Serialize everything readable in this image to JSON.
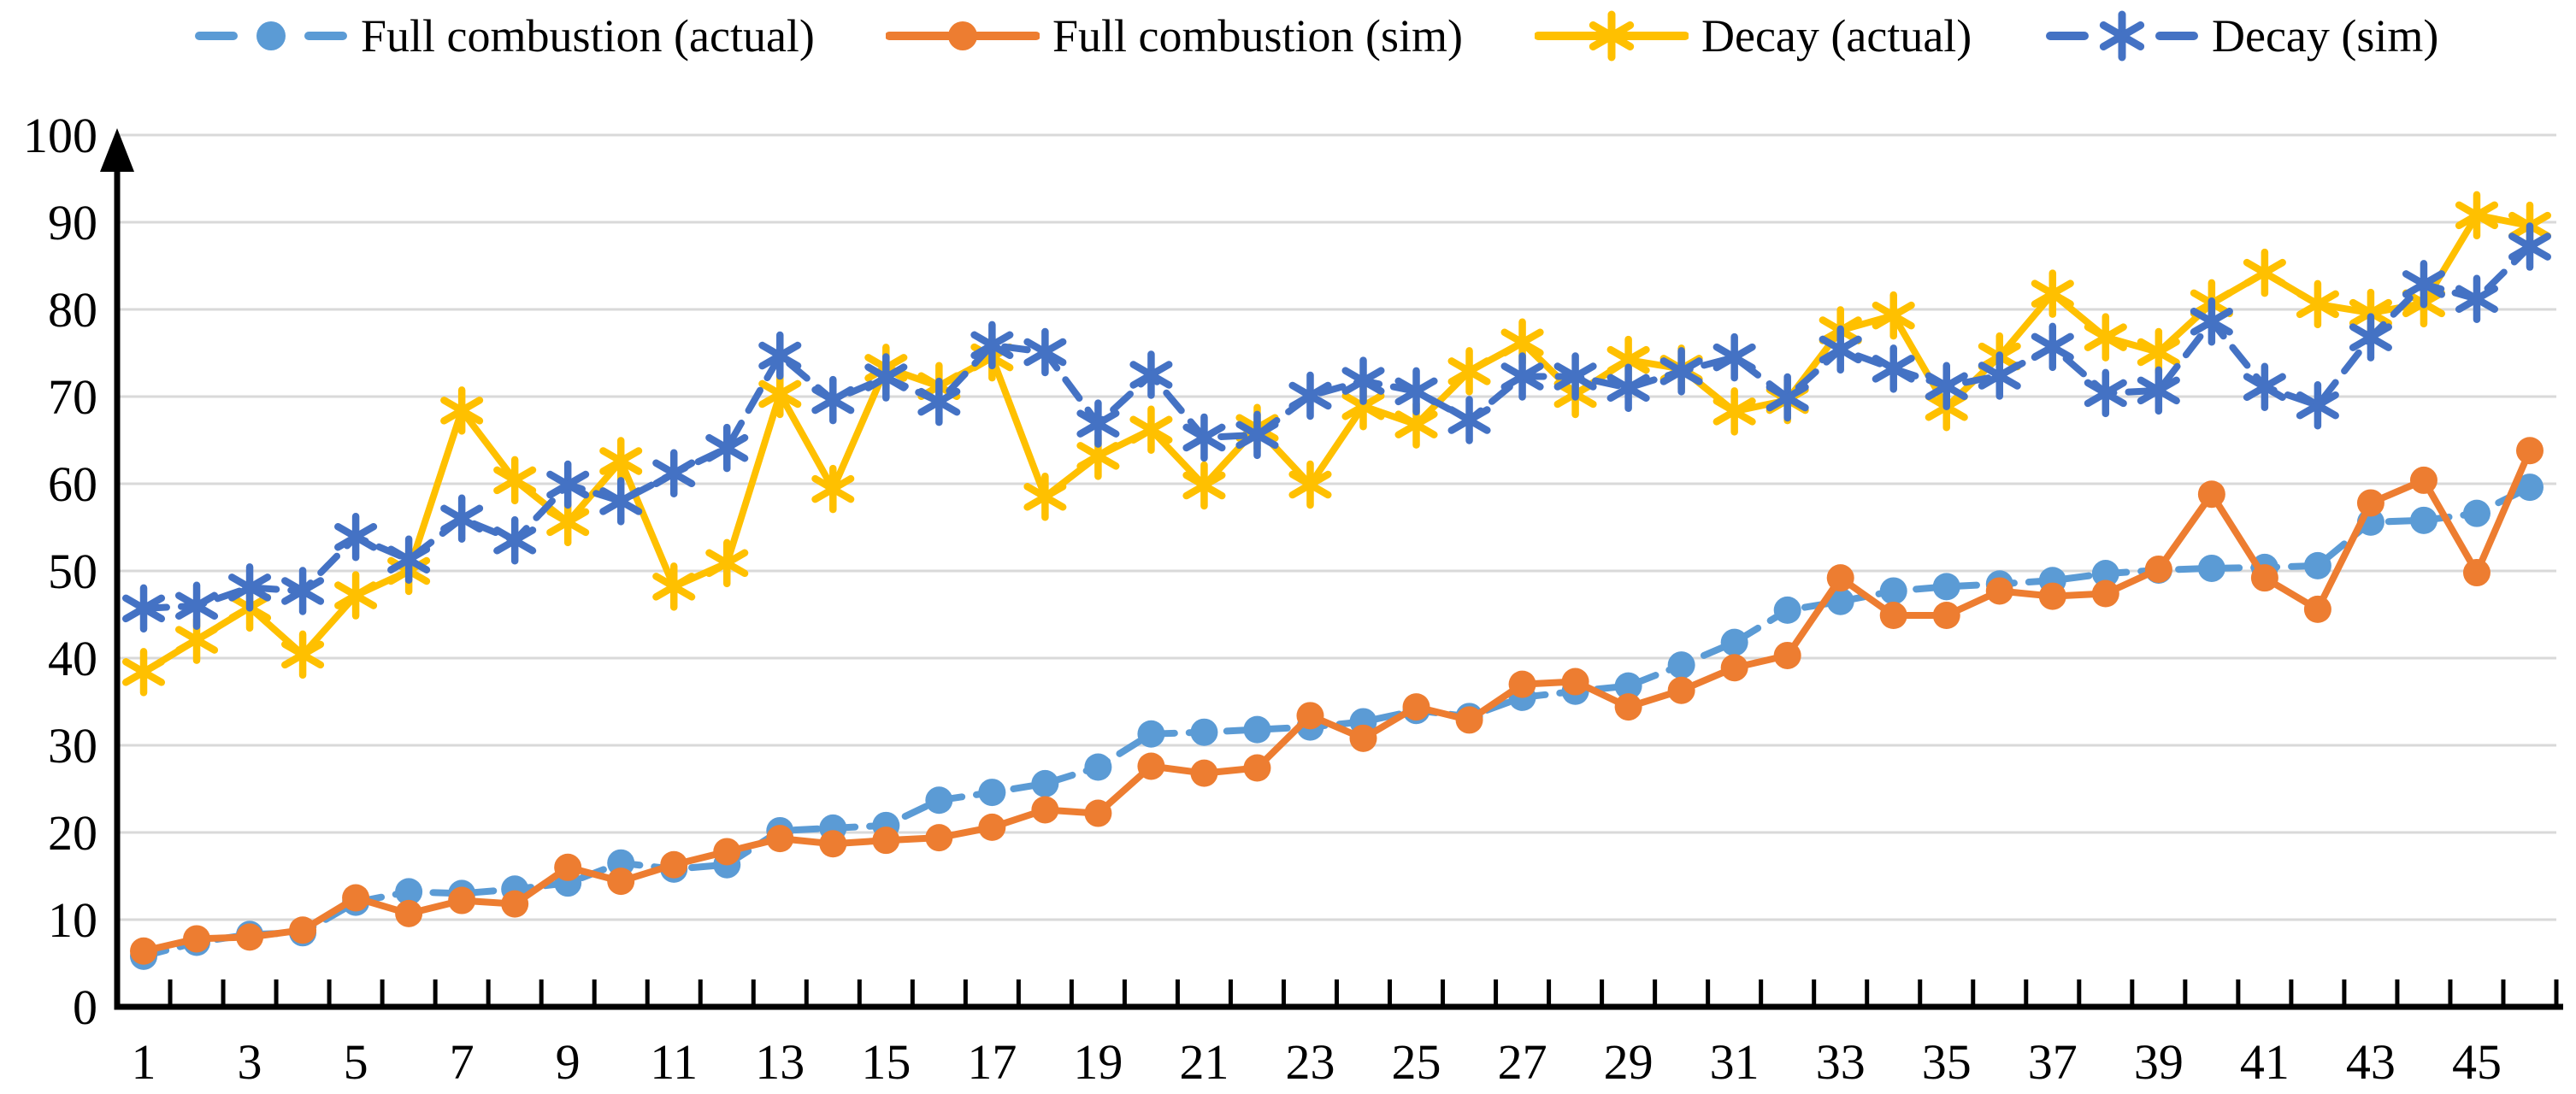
{
  "legend": {
    "items": [
      {
        "label": "Full combustion (actual)",
        "color": "#5B9BD5",
        "line": "dashed",
        "marker": "circle"
      },
      {
        "label": "Full combustion (sim)",
        "color": "#ED7D31",
        "line": "solid",
        "marker": "circle"
      },
      {
        "label": "Decay (actual)",
        "color": "#FFC000",
        "line": "solid",
        "marker": "asterisk"
      },
      {
        "label": "Decay (sim)",
        "color": "#4472C4",
        "line": "dashed",
        "marker": "asterisk"
      }
    ]
  },
  "colors": {
    "gridline": "#D9D9D9",
    "axis": "#000000",
    "background": "#FFFFFF"
  },
  "y_axis": {
    "tick_labels": [
      "0",
      "10",
      "20",
      "30",
      "40",
      "50",
      "60",
      "70",
      "80",
      "90",
      "100"
    ]
  },
  "x_axis": {
    "tick_labels": [
      "1",
      "3",
      "5",
      "7",
      "9",
      "11",
      "13",
      "15",
      "17",
      "19",
      "21",
      "23",
      "25",
      "27",
      "29",
      "31",
      "33",
      "35",
      "37",
      "39",
      "41",
      "43",
      "45"
    ]
  },
  "chart_data": {
    "type": "line",
    "title": "",
    "xlabel": "",
    "ylabel": "",
    "ylim": [
      0,
      100
    ],
    "ytick_interval": 10,
    "grid": true,
    "legend_position": "top",
    "x": [
      1,
      2,
      3,
      4,
      5,
      6,
      7,
      8,
      9,
      10,
      11,
      12,
      13,
      14,
      15,
      16,
      17,
      18,
      19,
      20,
      21,
      22,
      23,
      24,
      25,
      26,
      27,
      28,
      29,
      30,
      31,
      32,
      33,
      34,
      35,
      36,
      37,
      38,
      39,
      40,
      41,
      42,
      43,
      44,
      45,
      46
    ],
    "series": [
      {
        "name": "Full combustion (actual)",
        "color": "#5B9BD5",
        "line": "dashed",
        "marker": "circle",
        "values": [
          5.8,
          7.4,
          8.3,
          8.5,
          12.0,
          13.2,
          13.0,
          13.5,
          14.2,
          16.5,
          15.8,
          16.3,
          20.2,
          20.5,
          20.8,
          23.7,
          24.6,
          25.6,
          27.5,
          31.3,
          31.5,
          31.8,
          32.1,
          32.7,
          34.0,
          33.3,
          35.5,
          36.2,
          36.8,
          39.2,
          41.8,
          45.5,
          46.5,
          47.7,
          48.2,
          48.5,
          48.9,
          49.7,
          50.1,
          50.3,
          50.4,
          50.6,
          55.6,
          55.8,
          56.6,
          59.6
        ]
      },
      {
        "name": "Full combustion (sim)",
        "color": "#ED7D31",
        "line": "solid",
        "marker": "circle",
        "values": [
          6.4,
          7.8,
          8.0,
          8.8,
          12.5,
          10.7,
          12.2,
          11.8,
          16.0,
          14.4,
          16.3,
          17.8,
          19.3,
          18.7,
          19.1,
          19.4,
          20.6,
          22.6,
          22.2,
          27.6,
          26.8,
          27.4,
          33.4,
          30.8,
          34.4,
          32.9,
          37.0,
          37.3,
          34.4,
          36.3,
          38.9,
          40.3,
          49.2,
          44.9,
          44.9,
          47.7,
          47.1,
          47.4,
          50.2,
          58.8,
          49.2,
          45.6,
          57.8,
          60.4,
          49.8,
          63.8
        ]
      },
      {
        "name": "Decay (actual)",
        "color": "#FFC000",
        "line": "solid",
        "marker": "asterisk",
        "values": [
          38.4,
          42.1,
          45.8,
          40.4,
          47.2,
          50.0,
          68.4,
          60.4,
          55.6,
          62.6,
          48.2,
          50.9,
          70.3,
          59.4,
          73.3,
          71.2,
          74.5,
          58.5,
          63.2,
          66.2,
          59.8,
          66.4,
          59.9,
          68.9,
          66.8,
          72.9,
          76.2,
          70.3,
          74.2,
          73.2,
          68.3,
          69.6,
          77.6,
          79.3,
          68.8,
          74.6,
          81.8,
          76.8,
          75.1,
          80.7,
          84.2,
          80.6,
          79.6,
          80.7,
          90.8,
          89.6
        ]
      },
      {
        "name": "Decay (sim)",
        "color": "#4472C4",
        "line": "dashed",
        "marker": "asterisk",
        "values": [
          45.7,
          46.0,
          48.1,
          47.7,
          53.9,
          51.3,
          56.0,
          53.5,
          59.9,
          58.0,
          61.2,
          64.1,
          74.7,
          69.6,
          72.2,
          69.4,
          75.9,
          75.1,
          66.9,
          72.5,
          65.3,
          65.6,
          70.1,
          71.8,
          70.6,
          67.3,
          72.3,
          72.3,
          71.0,
          72.9,
          74.5,
          69.9,
          75.4,
          73.2,
          71.2,
          72.4,
          75.7,
          70.4,
          70.7,
          78.6,
          71.1,
          69.0,
          76.8,
          82.9,
          81.2,
          87.2
        ]
      }
    ]
  }
}
